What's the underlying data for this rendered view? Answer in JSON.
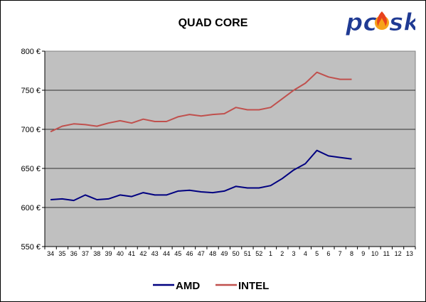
{
  "logo": {
    "text": "pc⊙sk",
    "icon": "flame-icon"
  },
  "chart_data": {
    "type": "line",
    "title": "QUAD CORE",
    "xlabel": "",
    "ylabel": "",
    "categories": [
      "34",
      "35",
      "36",
      "37",
      "38",
      "39",
      "40",
      "41",
      "42",
      "43",
      "44",
      "45",
      "46",
      "47",
      "48",
      "49",
      "50",
      "51",
      "52",
      "1",
      "2",
      "3",
      "4",
      "5",
      "6",
      "7",
      "8",
      "9",
      "10",
      "11",
      "12",
      "13"
    ],
    "yticks": [
      "550 €",
      "600 €",
      "650 €",
      "700 €",
      "750 €",
      "800 €"
    ],
    "ylim": [
      550,
      800
    ],
    "grid": true,
    "legend_position": "bottom",
    "series": [
      {
        "name": "AMD",
        "color": "#000080",
        "values": [
          610,
          611,
          609,
          616,
          610,
          611,
          616,
          614,
          619,
          616,
          616,
          621,
          622,
          620,
          619,
          621,
          627,
          625,
          625,
          628,
          637,
          648,
          656,
          673,
          666,
          664,
          662,
          null,
          null,
          null,
          null,
          null
        ]
      },
      {
        "name": "INTEL",
        "color": "#c0504d",
        "values": [
          697,
          704,
          707,
          706,
          704,
          708,
          711,
          708,
          713,
          710,
          710,
          716,
          719,
          717,
          719,
          720,
          728,
          725,
          725,
          728,
          739,
          750,
          759,
          773,
          767,
          764,
          764,
          null,
          null,
          null,
          null,
          null
        ]
      }
    ]
  }
}
